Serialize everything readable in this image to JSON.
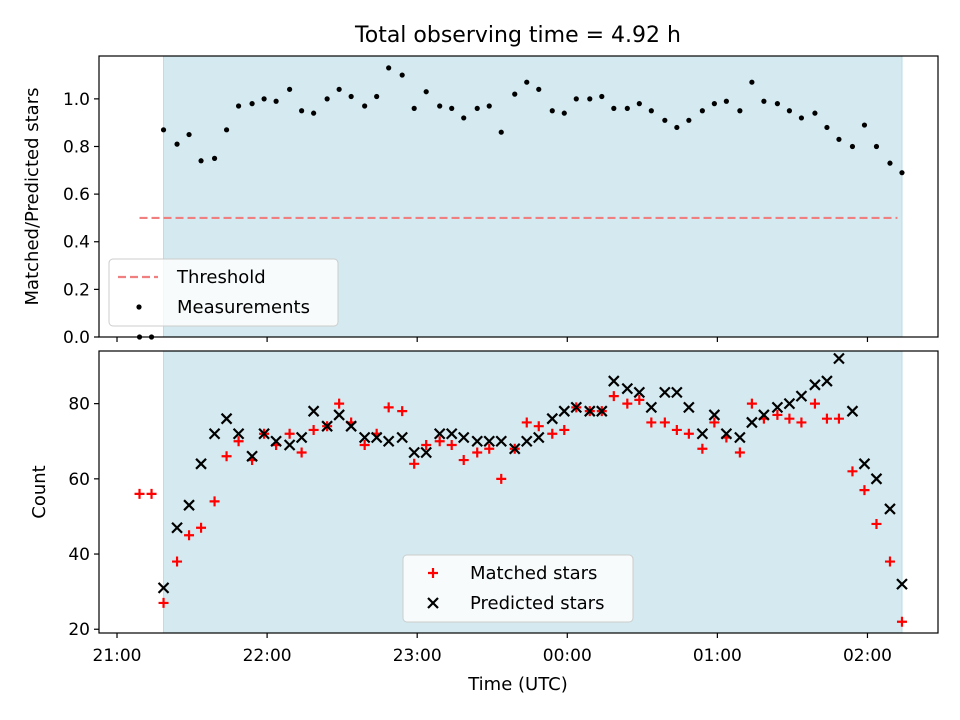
{
  "figure": {
    "title": "Total observing time = 4.92 h",
    "xlabel": "Time (UTC)"
  },
  "chart_data": [
    {
      "type": "scatter",
      "ylabel": "Matched/Predicted stars",
      "ylim": [
        0,
        1.18
      ],
      "yticks": [
        "0.0",
        "0.2",
        "0.4",
        "0.6",
        "0.8",
        "1.0"
      ],
      "ytick_values": [
        0,
        0.2,
        0.4,
        0.6,
        0.8,
        1.0
      ],
      "xtick_labels": [
        "21:00",
        "22:00",
        "23:00",
        "00:00",
        "01:00",
        "02:00"
      ],
      "xtick_values_hours": [
        21,
        22,
        23,
        24,
        25,
        26
      ],
      "xlim_hours": [
        20.88,
        26.47
      ],
      "shaded_region_hours": [
        21.31,
        26.23
      ],
      "threshold": {
        "name": "Threshold",
        "value": 0.5,
        "x_range_hours": [
          21.15,
          26.2
        ],
        "color": "#f08080"
      },
      "series": [
        {
          "name": "Measurements",
          "color": "#000000",
          "x_hours": [
            21.15,
            21.23,
            21.31,
            21.4,
            21.48,
            21.56,
            21.65,
            21.73,
            21.81,
            21.9,
            21.98,
            22.06,
            22.15,
            22.23,
            22.31,
            22.4,
            22.48,
            22.56,
            22.65,
            22.73,
            22.81,
            22.9,
            22.98,
            23.06,
            23.15,
            23.23,
            23.31,
            23.4,
            23.48,
            23.56,
            23.65,
            23.73,
            23.81,
            23.9,
            23.98,
            24.06,
            24.15,
            24.23,
            24.31,
            24.4,
            24.48,
            24.56,
            24.65,
            24.73,
            24.81,
            24.9,
            24.98,
            25.06,
            25.15,
            25.23,
            25.31,
            25.4,
            25.48,
            25.56,
            25.65,
            25.73,
            25.81,
            25.9,
            25.98,
            26.06,
            26.15,
            26.23
          ],
          "y": [
            0.0,
            0.0,
            0.87,
            0.81,
            0.85,
            0.74,
            0.75,
            0.87,
            0.97,
            0.98,
            1.0,
            0.99,
            1.04,
            0.95,
            0.94,
            1.0,
            1.04,
            1.01,
            0.97,
            1.01,
            1.13,
            1.1,
            0.96,
            1.03,
            0.97,
            0.96,
            0.92,
            0.96,
            0.97,
            0.86,
            1.02,
            1.07,
            1.04,
            0.95,
            0.94,
            1.0,
            1.0,
            1.01,
            0.96,
            0.96,
            0.98,
            0.95,
            0.91,
            0.88,
            0.91,
            0.95,
            0.98,
            0.99,
            0.95,
            1.07,
            0.99,
            0.98,
            0.95,
            0.92,
            0.94,
            0.88,
            0.83,
            0.8,
            0.89,
            0.8,
            0.73,
            0.69
          ]
        }
      ],
      "legend": {
        "position": "lower left",
        "labels": [
          "Threshold",
          "Measurements"
        ]
      }
    },
    {
      "type": "scatter",
      "ylabel": "Count",
      "ylim": [
        19,
        94
      ],
      "yticks": [
        "20",
        "40",
        "60",
        "80"
      ],
      "ytick_values": [
        20,
        40,
        60,
        80
      ],
      "xtick_labels": [
        "21:00",
        "22:00",
        "23:00",
        "00:00",
        "01:00",
        "02:00"
      ],
      "xtick_values_hours": [
        21,
        22,
        23,
        24,
        25,
        26
      ],
      "xlim_hours": [
        20.88,
        26.47
      ],
      "shaded_region_hours": [
        21.31,
        26.23
      ],
      "series": [
        {
          "name": "Matched stars",
          "marker": "plus",
          "color": "#ff0000",
          "x_hours": [
            21.15,
            21.23,
            21.31,
            21.4,
            21.48,
            21.56,
            21.65,
            21.73,
            21.81,
            21.9,
            21.98,
            22.06,
            22.15,
            22.23,
            22.31,
            22.4,
            22.48,
            22.56,
            22.65,
            22.73,
            22.81,
            22.9,
            22.98,
            23.06,
            23.15,
            23.23,
            23.31,
            23.4,
            23.48,
            23.56,
            23.65,
            23.73,
            23.81,
            23.9,
            23.98,
            24.06,
            24.15,
            24.23,
            24.31,
            24.4,
            24.48,
            24.56,
            24.65,
            24.73,
            24.81,
            24.9,
            24.98,
            25.06,
            25.15,
            25.23,
            25.31,
            25.4,
            25.48,
            25.56,
            25.65,
            25.73,
            25.81,
            25.9,
            25.98,
            26.06,
            26.15,
            26.23
          ],
          "y": [
            56,
            56,
            27,
            38,
            45,
            47,
            54,
            66,
            70,
            65,
            72,
            69,
            72,
            67,
            73,
            74,
            80,
            75,
            69,
            72,
            79,
            78,
            64,
            69,
            70,
            69,
            65,
            67,
            68,
            60,
            68,
            75,
            74,
            72,
            73,
            79,
            78,
            78,
            82,
            80,
            81,
            75,
            75,
            73,
            72,
            68,
            75,
            71,
            67,
            80,
            76,
            77,
            76,
            75,
            80,
            76,
            76,
            62,
            57,
            48,
            38,
            22
          ]
        },
        {
          "name": "Predicted stars",
          "marker": "x",
          "color": "#000000",
          "x_hours": [
            21.31,
            21.4,
            21.48,
            21.56,
            21.65,
            21.73,
            21.81,
            21.9,
            21.98,
            22.06,
            22.15,
            22.23,
            22.31,
            22.4,
            22.48,
            22.56,
            22.65,
            22.73,
            22.81,
            22.9,
            22.98,
            23.06,
            23.15,
            23.23,
            23.31,
            23.4,
            23.48,
            23.56,
            23.65,
            23.73,
            23.81,
            23.9,
            23.98,
            24.06,
            24.15,
            24.23,
            24.31,
            24.4,
            24.48,
            24.56,
            24.65,
            24.73,
            24.81,
            24.9,
            24.98,
            25.06,
            25.15,
            25.23,
            25.31,
            25.4,
            25.48,
            25.56,
            25.65,
            25.73,
            25.81,
            25.9,
            25.98,
            26.06,
            26.15,
            26.23
          ],
          "y": [
            31,
            47,
            53,
            64,
            72,
            76,
            72,
            66,
            72,
            70,
            69,
            71,
            78,
            74,
            77,
            74,
            71,
            71,
            70,
            71,
            67,
            67,
            72,
            72,
            71,
            70,
            70,
            70,
            68,
            70,
            71,
            76,
            78,
            79,
            78,
            78,
            86,
            84,
            83,
            79,
            83,
            83,
            79,
            72,
            77,
            72,
            71,
            75,
            77,
            79,
            80,
            82,
            85,
            86,
            92,
            78,
            64,
            60,
            52,
            32
          ]
        }
      ],
      "legend": {
        "position": "lower center",
        "labels": [
          "Matched stars",
          "Predicted stars"
        ]
      }
    }
  ]
}
